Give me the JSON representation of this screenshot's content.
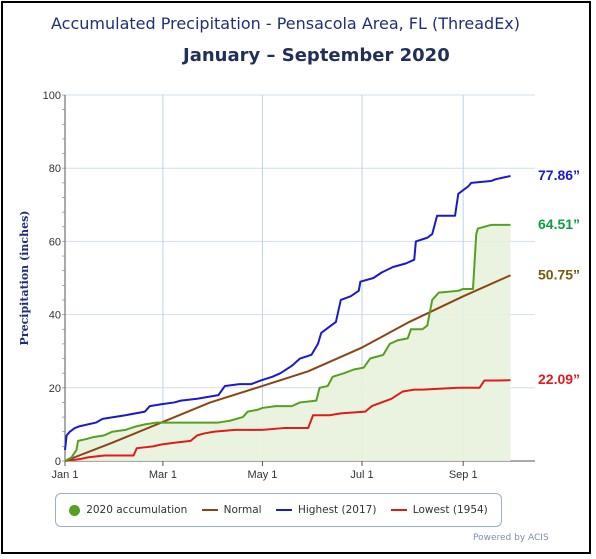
{
  "chart_data": {
    "type": "line",
    "title": "Accumulated Precipitation - Pensacola Area, FL (ThreadEx)",
    "subtitle": "January – September 2020",
    "ylabel": "Precipitation (inches)",
    "xlabel": "",
    "ylim": [
      0,
      100
    ],
    "xlim": [
      1,
      289
    ],
    "y_ticks": [
      "0",
      "20",
      "40",
      "60",
      "80",
      "100"
    ],
    "x_ticks": [
      {
        "day": 1,
        "label": "Jan 1"
      },
      {
        "day": 61,
        "label": "Mar 1"
      },
      {
        "day": 122,
        "label": "May 1"
      },
      {
        "day": 183,
        "label": "Jul 1"
      },
      {
        "day": 245,
        "label": "Sep 1"
      }
    ],
    "grid": true,
    "series": [
      {
        "name": "2020 accumulation",
        "color": "#55a020",
        "fill": true,
        "end_label": "64.51”",
        "points": [
          [
            1,
            0
          ],
          [
            5,
            1
          ],
          [
            8,
            3
          ],
          [
            9,
            5.5
          ],
          [
            14,
            6
          ],
          [
            18,
            6.5
          ],
          [
            25,
            7
          ],
          [
            30,
            8
          ],
          [
            38,
            8.5
          ],
          [
            45,
            9.5
          ],
          [
            50,
            10
          ],
          [
            57,
            10.5
          ],
          [
            64,
            10.5
          ],
          [
            80,
            10.5
          ],
          [
            95,
            10.5
          ],
          [
            102,
            11
          ],
          [
            110,
            12
          ],
          [
            113,
            13.5
          ],
          [
            119,
            14
          ],
          [
            122,
            14.5
          ],
          [
            130,
            15
          ],
          [
            140,
            15
          ],
          [
            145,
            16
          ],
          [
            155,
            16.5
          ],
          [
            157,
            20
          ],
          [
            162,
            20.5
          ],
          [
            165,
            23
          ],
          [
            172,
            24
          ],
          [
            178,
            25
          ],
          [
            184,
            25.5
          ],
          [
            188,
            28
          ],
          [
            196,
            29
          ],
          [
            200,
            32
          ],
          [
            205,
            33
          ],
          [
            211,
            33.5
          ],
          [
            213,
            36
          ],
          [
            220,
            36
          ],
          [
            223,
            37
          ],
          [
            226,
            44
          ],
          [
            228,
            45
          ],
          [
            230,
            46
          ],
          [
            242,
            46.5
          ],
          [
            245,
            47
          ],
          [
            251,
            47
          ],
          [
            253,
            62
          ],
          [
            254,
            63.5
          ],
          [
            262,
            64.5
          ],
          [
            266,
            64.5
          ],
          [
            274,
            64.51
          ]
        ]
      },
      {
        "name": "Normal",
        "color": "#8b4513",
        "fill": false,
        "end_label": "50.75”",
        "points": [
          [
            1,
            0
          ],
          [
            30,
            5
          ],
          [
            60,
            10.5
          ],
          [
            90,
            16
          ],
          [
            122,
            20.5
          ],
          [
            150,
            24.5
          ],
          [
            183,
            31
          ],
          [
            212,
            38
          ],
          [
            245,
            45
          ],
          [
            274,
            50.75
          ]
        ]
      },
      {
        "name": "Highest (2017)",
        "color": "#1a1acc",
        "fill": false,
        "end_label": "77.86”",
        "points": [
          [
            1,
            3
          ],
          [
            2,
            7
          ],
          [
            4,
            8
          ],
          [
            7,
            9
          ],
          [
            10,
            9.5
          ],
          [
            20,
            10.5
          ],
          [
            24,
            11.5
          ],
          [
            38,
            12.5
          ],
          [
            50,
            13.5
          ],
          [
            53,
            15
          ],
          [
            60,
            15.5
          ],
          [
            68,
            16
          ],
          [
            72,
            16.5
          ],
          [
            82,
            17
          ],
          [
            95,
            18
          ],
          [
            99,
            20.5
          ],
          [
            108,
            21
          ],
          [
            115,
            21
          ],
          [
            121,
            22
          ],
          [
            128,
            23
          ],
          [
            133,
            24
          ],
          [
            140,
            26
          ],
          [
            145,
            28
          ],
          [
            152,
            29
          ],
          [
            156,
            32
          ],
          [
            158,
            35
          ],
          [
            164,
            37
          ],
          [
            167,
            38
          ],
          [
            170,
            44
          ],
          [
            176,
            45
          ],
          [
            181,
            46.5
          ],
          [
            182,
            49
          ],
          [
            190,
            50
          ],
          [
            195,
            51.5
          ],
          [
            202,
            53
          ],
          [
            210,
            54
          ],
          [
            215,
            55
          ],
          [
            216,
            60
          ],
          [
            223,
            61
          ],
          [
            226,
            62
          ],
          [
            229,
            67
          ],
          [
            236,
            67
          ],
          [
            240,
            67
          ],
          [
            242,
            73
          ],
          [
            248,
            75
          ],
          [
            250,
            76
          ],
          [
            262,
            76.5
          ],
          [
            265,
            77
          ],
          [
            270,
            77.5
          ],
          [
            274,
            77.86
          ]
        ]
      },
      {
        "name": "Lowest (1954)",
        "color": "#e01b1b",
        "fill": false,
        "end_label": "22.09”",
        "points": [
          [
            1,
            0
          ],
          [
            10,
            0.5
          ],
          [
            15,
            1
          ],
          [
            25,
            1.5
          ],
          [
            43,
            1.5
          ],
          [
            45,
            3.5
          ],
          [
            55,
            4
          ],
          [
            60,
            4.5
          ],
          [
            68,
            5
          ],
          [
            78,
            5.5
          ],
          [
            82,
            7
          ],
          [
            86,
            7.5
          ],
          [
            92,
            8
          ],
          [
            105,
            8.5
          ],
          [
            112,
            8.5
          ],
          [
            116,
            8.5
          ],
          [
            122,
            8.5
          ],
          [
            135,
            9
          ],
          [
            150,
            9
          ],
          [
            153,
            12.5
          ],
          [
            163,
            12.5
          ],
          [
            170,
            13
          ],
          [
            185,
            13.5
          ],
          [
            189,
            15
          ],
          [
            195,
            16
          ],
          [
            201,
            17
          ],
          [
            208,
            19
          ],
          [
            215,
            19.5
          ],
          [
            220,
            19.5
          ],
          [
            242,
            20
          ],
          [
            255,
            20
          ],
          [
            258,
            22
          ],
          [
            266,
            22
          ],
          [
            274,
            22.09
          ]
        ]
      }
    ]
  },
  "credit": "Powered by ACIS"
}
